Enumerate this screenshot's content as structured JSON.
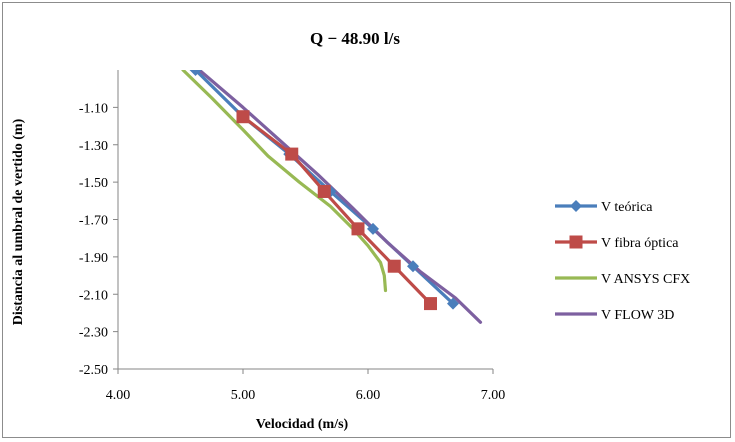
{
  "chart_data": {
    "type": "line",
    "title": "Q − 48.90 l/s",
    "xlabel": "Velocidad (m/s)",
    "ylabel": "Distancia al umbral de vertido (m)",
    "xlim": [
      4.0,
      7.0
    ],
    "ylim": [
      -2.5,
      -0.9
    ],
    "x_ticks": [
      "4.00",
      "5.00",
      "6.00",
      "7.00"
    ],
    "y_ticks": [
      "-1.10",
      "-1.30",
      "-1.50",
      "-1.70",
      "-1.90",
      "-2.10",
      "-2.30",
      "-2.50"
    ],
    "legend_position": "right",
    "grid": false,
    "series": [
      {
        "name": "V teórica",
        "color": "#4a7ebb",
        "marker": "diamond",
        "points": [
          [
            4.62,
            -0.9
          ],
          [
            5.0,
            -1.15
          ],
          [
            5.37,
            -1.35
          ],
          [
            5.7,
            -1.55
          ],
          [
            6.04,
            -1.75
          ],
          [
            6.36,
            -1.95
          ],
          [
            6.68,
            -2.15
          ]
        ]
      },
      {
        "name": "V fibra óptica",
        "color": "#be4b48",
        "marker": "square",
        "points": [
          [
            5.0,
            -1.15
          ],
          [
            5.39,
            -1.35
          ],
          [
            5.65,
            -1.55
          ],
          [
            5.92,
            -1.75
          ],
          [
            6.21,
            -1.95
          ],
          [
            6.5,
            -2.15
          ]
        ]
      },
      {
        "name": "V ANSYS CFX",
        "color": "#98b954",
        "marker": "none",
        "points": [
          [
            4.52,
            -0.9
          ],
          [
            4.75,
            -1.05
          ],
          [
            5.0,
            -1.22
          ],
          [
            5.2,
            -1.36
          ],
          [
            5.45,
            -1.5
          ],
          [
            5.7,
            -1.63
          ],
          [
            5.88,
            -1.75
          ],
          [
            6.0,
            -1.84
          ],
          [
            6.1,
            -1.93
          ],
          [
            6.13,
            -2.0
          ],
          [
            6.14,
            -2.08
          ]
        ]
      },
      {
        "name": "V FLOW 3D",
        "color": "#7d60a0",
        "marker": "none",
        "points": [
          [
            4.65,
            -0.9
          ],
          [
            5.0,
            -1.1
          ],
          [
            5.3,
            -1.28
          ],
          [
            5.6,
            -1.46
          ],
          [
            5.88,
            -1.64
          ],
          [
            6.15,
            -1.82
          ],
          [
            6.42,
            -1.98
          ],
          [
            6.7,
            -2.12
          ],
          [
            6.9,
            -2.25
          ]
        ]
      }
    ]
  }
}
